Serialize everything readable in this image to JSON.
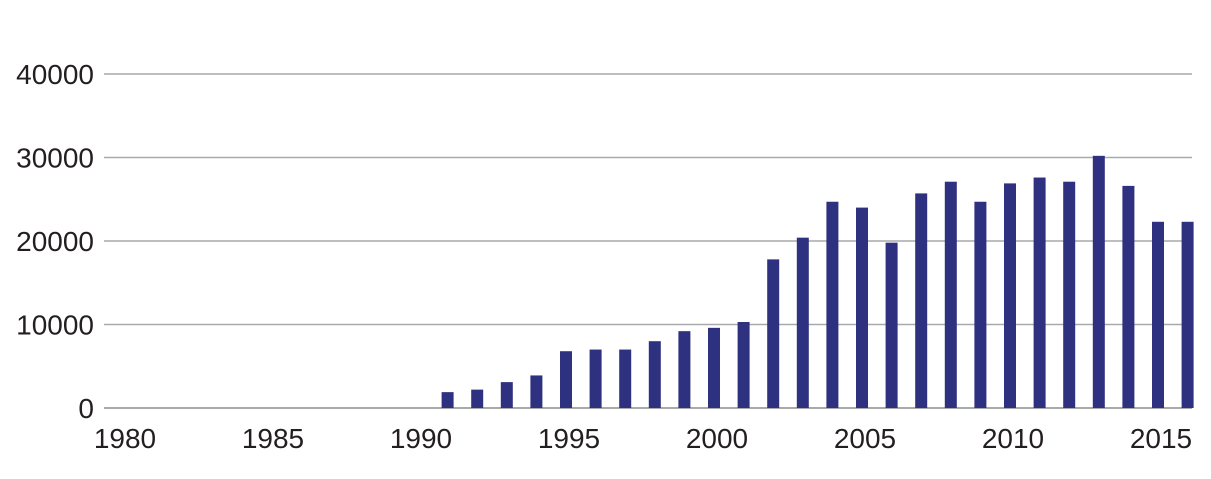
{
  "chart_data": {
    "type": "bar",
    "title": "",
    "xlabel": "",
    "ylabel": "",
    "xlim": [
      1980,
      2016
    ],
    "ylim": [
      0,
      40000
    ],
    "x_ticks": [
      "1980",
      "1985",
      "1990",
      "1995",
      "2000",
      "2005",
      "2010",
      "2015"
    ],
    "y_ticks": [
      "0",
      "10000",
      "20000",
      "30000",
      "40000"
    ],
    "grid": true,
    "legend": "none",
    "bar_color": "#2e3080",
    "categories": [
      1991,
      1992,
      1993,
      1994,
      1995,
      1996,
      1997,
      1998,
      1999,
      2000,
      2001,
      2002,
      2003,
      2004,
      2005,
      2006,
      2007,
      2008,
      2009,
      2010,
      2011,
      2012,
      2013,
      2014,
      2015,
      2016
    ],
    "values": [
      1900,
      2200,
      3100,
      3900,
      6800,
      7000,
      7000,
      8000,
      9200,
      9600,
      10300,
      17800,
      20400,
      24700,
      24000,
      19800,
      25700,
      27100,
      24700,
      26900,
      27600,
      27100,
      30200,
      26600,
      22300,
      22300
    ]
  }
}
